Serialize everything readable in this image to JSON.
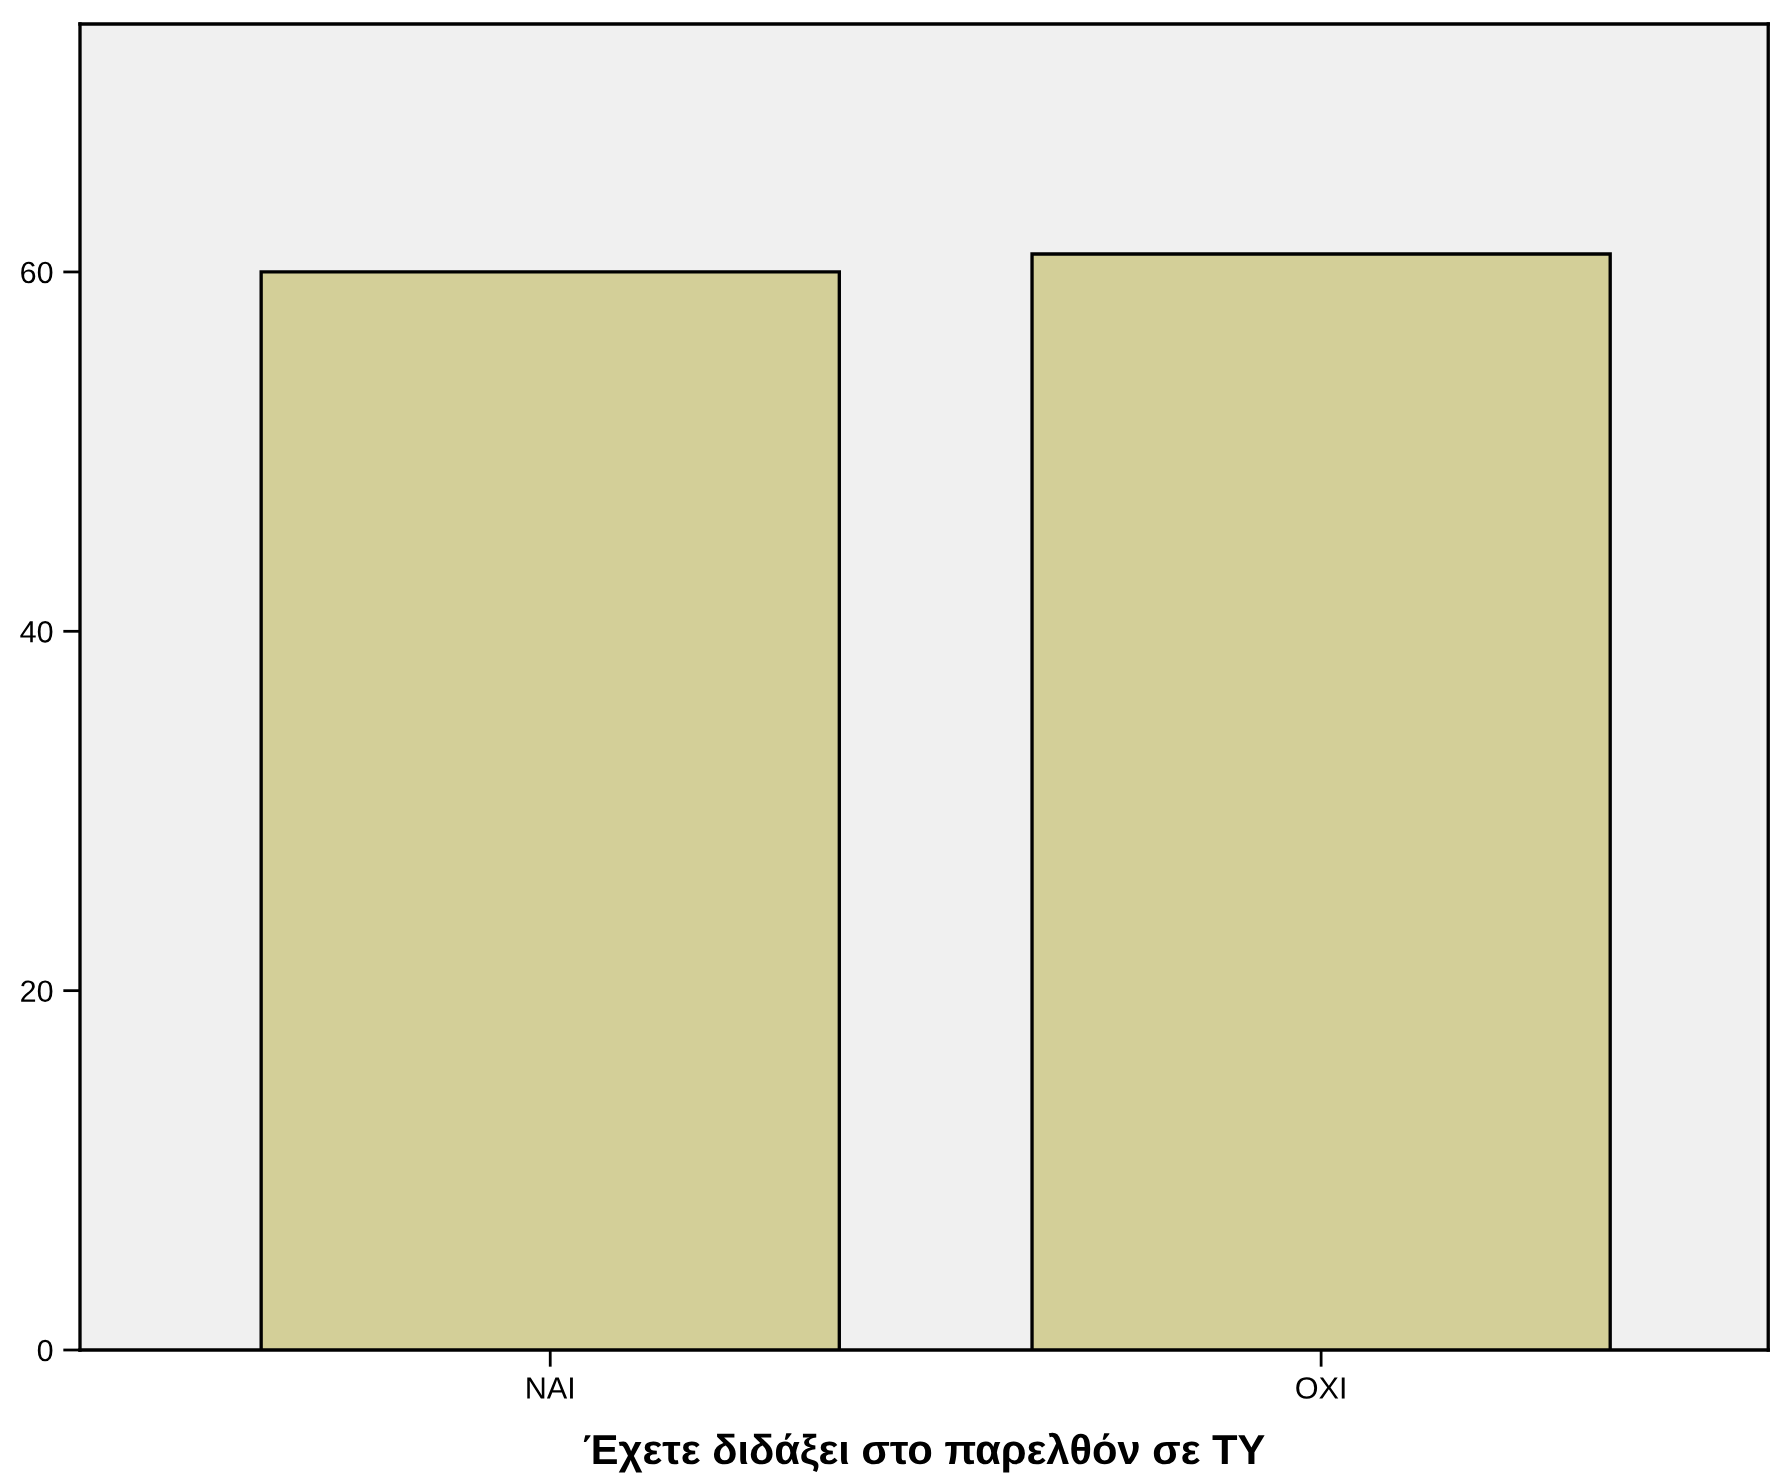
{
  "chart_data": {
    "type": "bar",
    "xlabel": "Έχετε διδάξει στο παρελθόν σε ΤΥ",
    "categories": [
      "ΝΑΙ",
      "ΟΧΙ"
    ],
    "values": [
      60,
      61
    ],
    "color": "#d3cf98",
    "ylim": [
      0,
      73.8
    ],
    "yticks": [
      0,
      20,
      40,
      60
    ],
    "grid": false
  }
}
